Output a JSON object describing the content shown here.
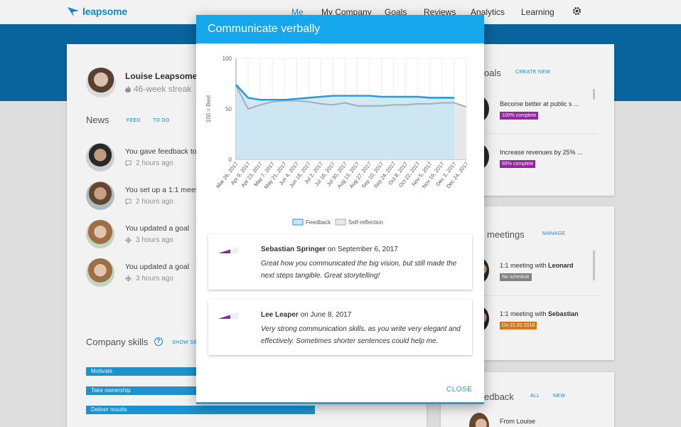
{
  "nav": {
    "logo_text": "leapsome",
    "items": [
      {
        "label": "Me",
        "active": true
      },
      {
        "label": "My Company"
      },
      {
        "label": "Goals"
      },
      {
        "label": "Reviews"
      },
      {
        "label": "Analytics"
      },
      {
        "label": "Learning"
      }
    ],
    "settings_icon": "gear-icon"
  },
  "profile": {
    "name": "Louise Leapsome",
    "streak": "46-week streak"
  },
  "news": {
    "title": "News",
    "tabs": [
      "FEED",
      "TO DO"
    ],
    "items": [
      {
        "text": "You gave feedback to",
        "time": "2 hours ago",
        "icon": "comment-icon"
      },
      {
        "text": "You set up a 1:1 meeti",
        "time": "2 hours ago",
        "icon": "comment-icon"
      },
      {
        "text": "You updated a goal",
        "time": "3 hours ago",
        "icon": "target-icon"
      },
      {
        "text": "You updated a goal",
        "time": "3 hours ago",
        "icon": "target-icon"
      }
    ]
  },
  "skills": {
    "title": "Company skills",
    "show_link": "SHOW SEL",
    "items": [
      {
        "label": "Motivate",
        "progress": 0.33
      },
      {
        "label": "Take ownership",
        "progress": 0.33
      },
      {
        "label": "Deliver results",
        "progress": 0.66
      }
    ]
  },
  "goals": {
    "title": "oals",
    "action": "CREATE NEW",
    "items": [
      {
        "text": "Become better at public s ...",
        "badge": "100% complete",
        "badge_color": "#9b27a8"
      },
      {
        "text": "Increase revenues by 25% ...",
        "badge": "89% complete",
        "badge_color": "#9b27a8"
      }
    ]
  },
  "meetings": {
    "title": "meetings",
    "action": "MANAGE",
    "items": [
      {
        "prefix": "1:1 meeting with ",
        "name": "Leonard",
        "badge": "No schedule",
        "badge_color": "#8a8a8a"
      },
      {
        "prefix": "1:1 meeting with ",
        "name": "Sebastian",
        "badge": "On 21.02.2018",
        "badge_color": "#e07f1c"
      }
    ]
  },
  "feedback_card": {
    "title": "edback",
    "tabs": [
      "ALL",
      "NEW"
    ],
    "first_item": "From Louise"
  },
  "modal": {
    "title": "Communicate verbally",
    "close_label": "CLOSE",
    "feedback": [
      {
        "author": "Sebastian Springer",
        "on_word": "on",
        "date": "September 6, 2017",
        "text": "Great how you communicated the big vision, but still made the next steps tangible. Great storytelling!"
      },
      {
        "author": "Lee Leaper",
        "on_word": "on",
        "date": "June 8, 2017",
        "text": "Very strong communication skills, as you write very elegant and effectively. Sometimes shorter sentences could help me."
      }
    ]
  },
  "chart_data": {
    "type": "line",
    "ylabel": "100 = Best",
    "ylim": [
      0,
      100
    ],
    "yticks": [
      0,
      50,
      100
    ],
    "categories": [
      "Mar 26, 2017",
      "Apr 9, 2017",
      "Apr 23, 2017",
      "May 7, 2017",
      "May 21, 2017",
      "Jun 4, 2017",
      "Jun 18, 2017",
      "Jul 2, 2017",
      "Jul 16, 2017",
      "Jul 30, 2017",
      "Aug 13, 2017",
      "Aug 27, 2017",
      "Sep 10, 2017",
      "Sep 24, 2017",
      "Oct 8, 2017",
      "Oct 22, 2017",
      "Nov 5, 2017",
      "Nov 19, 2017",
      "Dec 3, 2017",
      "Dec 24, 2017"
    ],
    "series": [
      {
        "name": "Feedback",
        "color": "#1e9be0",
        "fill": "#c9e4f3",
        "values": [
          74,
          61,
          59,
          59,
          59,
          60,
          61,
          62,
          63,
          63,
          63,
          63,
          62,
          62,
          62,
          62,
          61,
          61,
          61,
          63
        ]
      },
      {
        "name": "Self-reflection",
        "color": "#a3aeb6",
        "fill": "#e6e8ea",
        "values": [
          73,
          50,
          54,
          57,
          58,
          58,
          57,
          55,
          54,
          56,
          53,
          53,
          53,
          54,
          54,
          55,
          55,
          56,
          56,
          52
        ]
      }
    ],
    "legend_position": "bottom",
    "grid": true
  }
}
